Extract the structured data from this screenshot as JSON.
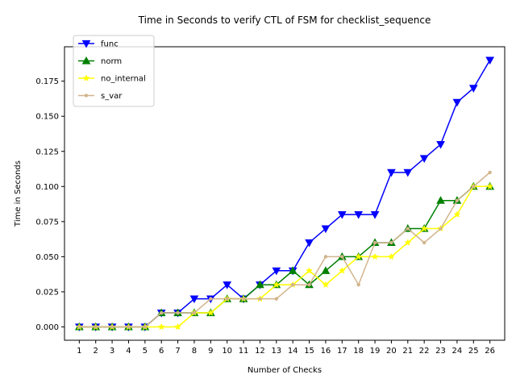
{
  "chart_data": {
    "type": "line",
    "title": "Time in Seconds to verify CTL of FSM for checklist_sequence",
    "xlabel": "Number of Checks",
    "ylabel": "Time in Seconds",
    "x": [
      1,
      2,
      3,
      4,
      5,
      6,
      7,
      8,
      9,
      10,
      11,
      12,
      13,
      14,
      15,
      16,
      17,
      18,
      19,
      20,
      21,
      22,
      23,
      24,
      25,
      26
    ],
    "xlim": [
      0.1,
      26.9
    ],
    "ylim": [
      -0.0095,
      0.1995
    ],
    "yticks": [
      0.0,
      0.025,
      0.05,
      0.075,
      0.1,
      0.125,
      0.15,
      0.175
    ],
    "ytick_labels": [
      "0.000",
      "0.025",
      "0.050",
      "0.075",
      "0.100",
      "0.125",
      "0.150",
      "0.175"
    ],
    "legend_position": "top-left",
    "grid": false,
    "series": [
      {
        "name": "func",
        "color": "#0000ff",
        "marker": "triangle-down",
        "values": [
          0,
          0,
          0,
          0,
          0,
          0.01,
          0.01,
          0.02,
          0.02,
          0.03,
          0.02,
          0.03,
          0.04,
          0.04,
          0.06,
          0.07,
          0.08,
          0.08,
          0.08,
          0.11,
          0.11,
          0.12,
          0.13,
          0.16,
          0.17,
          0.19
        ]
      },
      {
        "name": "norm",
        "color": "#008000",
        "marker": "triangle-up",
        "values": [
          0,
          0,
          0,
          0,
          0,
          0.01,
          0.01,
          0.01,
          0.01,
          0.02,
          0.02,
          0.03,
          0.03,
          0.04,
          0.03,
          0.04,
          0.05,
          0.05,
          0.06,
          0.06,
          0.07,
          0.07,
          0.09,
          0.09,
          0.1,
          0.1
        ]
      },
      {
        "name": "no_internal",
        "color": "#ffff00",
        "marker": "star",
        "values": [
          0,
          0,
          0,
          0,
          0,
          0,
          0,
          0.01,
          0.01,
          0.02,
          0.02,
          0.02,
          0.03,
          0.03,
          0.04,
          0.03,
          0.04,
          0.05,
          0.05,
          0.05,
          0.06,
          0.07,
          0.07,
          0.08,
          0.1,
          0.1
        ]
      },
      {
        "name": "s_var",
        "color": "#d2b48c",
        "marker": "dot",
        "values": [
          0,
          0,
          0,
          0,
          0,
          0.01,
          0.01,
          0.01,
          0.02,
          0.02,
          0.02,
          0.02,
          0.02,
          0.03,
          0.03,
          0.05,
          0.05,
          0.03,
          0.06,
          0.06,
          0.07,
          0.06,
          0.07,
          0.09,
          0.1,
          0.11
        ]
      }
    ]
  }
}
